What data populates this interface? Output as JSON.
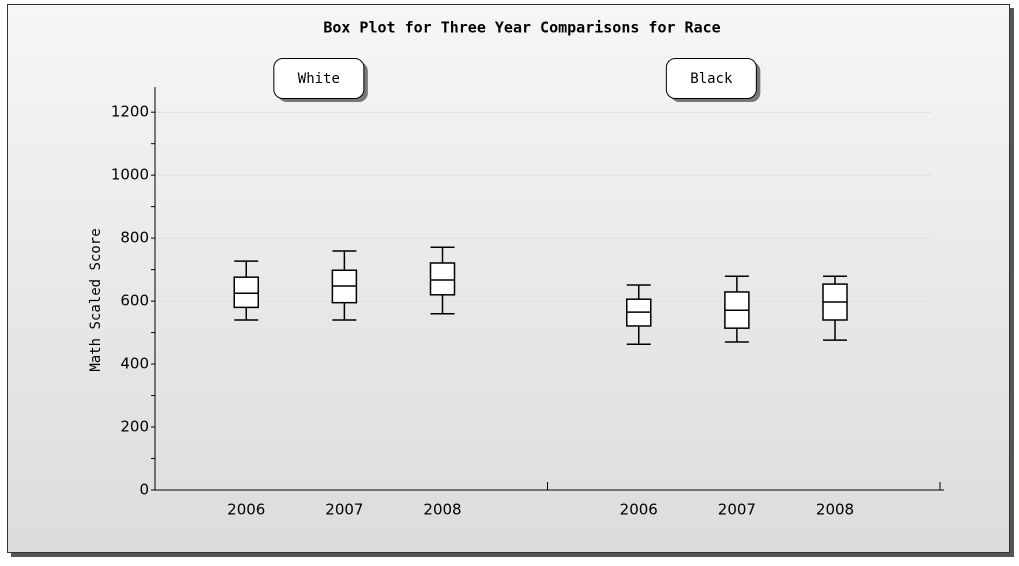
{
  "chart_data": {
    "type": "box",
    "title": "Box Plot for Three Year Comparisons for Race",
    "y_label": "Math Scaled Score",
    "categories": [
      "2006",
      "2007",
      "2008"
    ],
    "series": [
      {
        "name": "White",
        "color": "#ffffff",
        "whisker_low": [
          540,
          540,
          560
        ],
        "q1": [
          580,
          595,
          620
        ],
        "median": [
          625,
          648,
          667
        ],
        "q3": [
          676,
          698,
          721
        ],
        "whisker_high": [
          727,
          759,
          771
        ]
      },
      {
        "name": "Black",
        "color": "#ffffff",
        "whisker_low": [
          463,
          470,
          476
        ],
        "q1": [
          521,
          514,
          540
        ],
        "median": [
          565,
          571,
          597
        ],
        "q3": [
          606,
          629,
          654
        ],
        "whisker_high": [
          651,
          679,
          679
        ]
      }
    ],
    "ylim": [
      0,
      1280
    ],
    "yticks": [
      0,
      200,
      400,
      600,
      800,
      1000,
      1200
    ],
    "minor_yticks": [
      100,
      300,
      500,
      700,
      900,
      1100
    ],
    "grid": true
  }
}
